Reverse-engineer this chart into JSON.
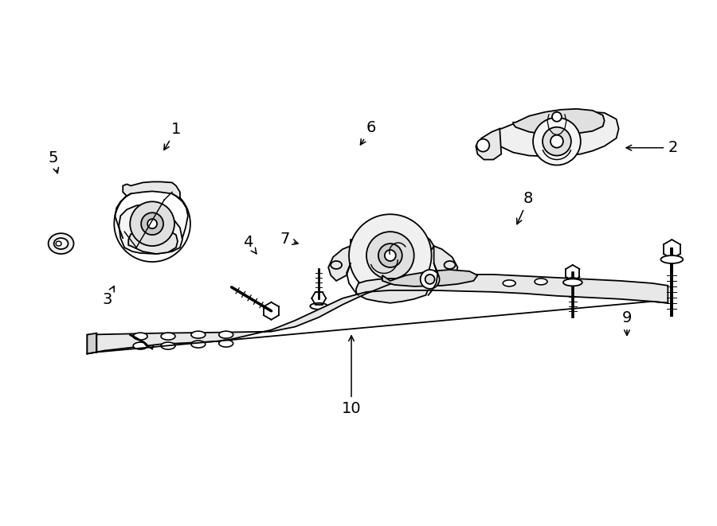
{
  "background_color": "#ffffff",
  "line_color": "#000000",
  "label_color": "#000000",
  "fig_width": 9.0,
  "fig_height": 6.61,
  "dpi": 100,
  "label_data": [
    [
      1,
      0.245,
      0.755,
      0.225,
      0.71
    ],
    [
      2,
      0.94,
      0.72,
      0.87,
      0.72
    ],
    [
      3,
      0.148,
      0.43,
      0.16,
      0.462
    ],
    [
      4,
      0.345,
      0.54,
      0.358,
      0.516
    ],
    [
      5,
      0.072,
      0.7,
      0.08,
      0.665
    ],
    [
      6,
      0.518,
      0.758,
      0.5,
      0.72
    ],
    [
      7,
      0.397,
      0.545,
      0.42,
      0.535
    ],
    [
      8,
      0.738,
      0.623,
      0.72,
      0.568
    ],
    [
      9,
      0.876,
      0.395,
      0.876,
      0.355
    ],
    [
      10,
      0.49,
      0.222,
      0.49,
      0.368
    ]
  ]
}
